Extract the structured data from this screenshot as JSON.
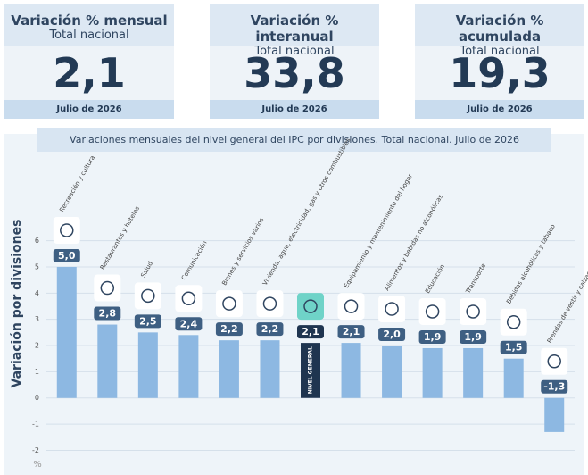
{
  "cards": [
    {
      "title": "Variación % mensual",
      "subtitle": "Total nacional",
      "value": "2,1",
      "footer": "Julio de 2026"
    },
    {
      "title": "Variación % interanual",
      "subtitle": "Total nacional",
      "value": "33,8",
      "footer": "Julio de 2026"
    },
    {
      "title": "Variación % acumulada",
      "subtitle": "Total nacional",
      "value": "19,3",
      "footer": "Julio de 2026"
    }
  ],
  "chart_data": {
    "type": "bar",
    "title": "Variaciones mensuales del nivel general del IPC por divisiones. Total nacional. Julio de 2026",
    "y_label": "Variación por divisiones",
    "y_unit": "%",
    "categories": [
      "Recreación y cultura",
      "Restaurantes y hoteles",
      "Salud",
      "Comunicación",
      "Bienes y servicios varios",
      "Vivienda, agua, electricidad, gas y otros combustibles",
      "NIVEL GENERAL",
      "Equipamiento y mantenimiento del hogar",
      "Alimentos y bebidas no alcohólicas",
      "Educación",
      "Transporte",
      "Bebidas alcohólicas y tabaco",
      "Prendas de vestir y calzado"
    ],
    "values": [
      5.0,
      2.8,
      2.5,
      2.4,
      2.2,
      2.2,
      2.1,
      2.1,
      2.0,
      1.9,
      1.9,
      1.5,
      -1.3
    ],
    "value_labels": [
      "5,0",
      "2,8",
      "2,5",
      "2,4",
      "2,2",
      "2,2",
      "2,1",
      "2,1",
      "2,0",
      "1,9",
      "1,9",
      "1,5",
      "-1,3"
    ],
    "color": "#8db8e2",
    "highlight_color": "#1f3550",
    "highlight_index": 6,
    "ylim": [
      -2.7,
      6.6
    ],
    "yticks": [
      -2,
      -1,
      0,
      1,
      2,
      3,
      4,
      5,
      6
    ],
    "grid": true
  }
}
